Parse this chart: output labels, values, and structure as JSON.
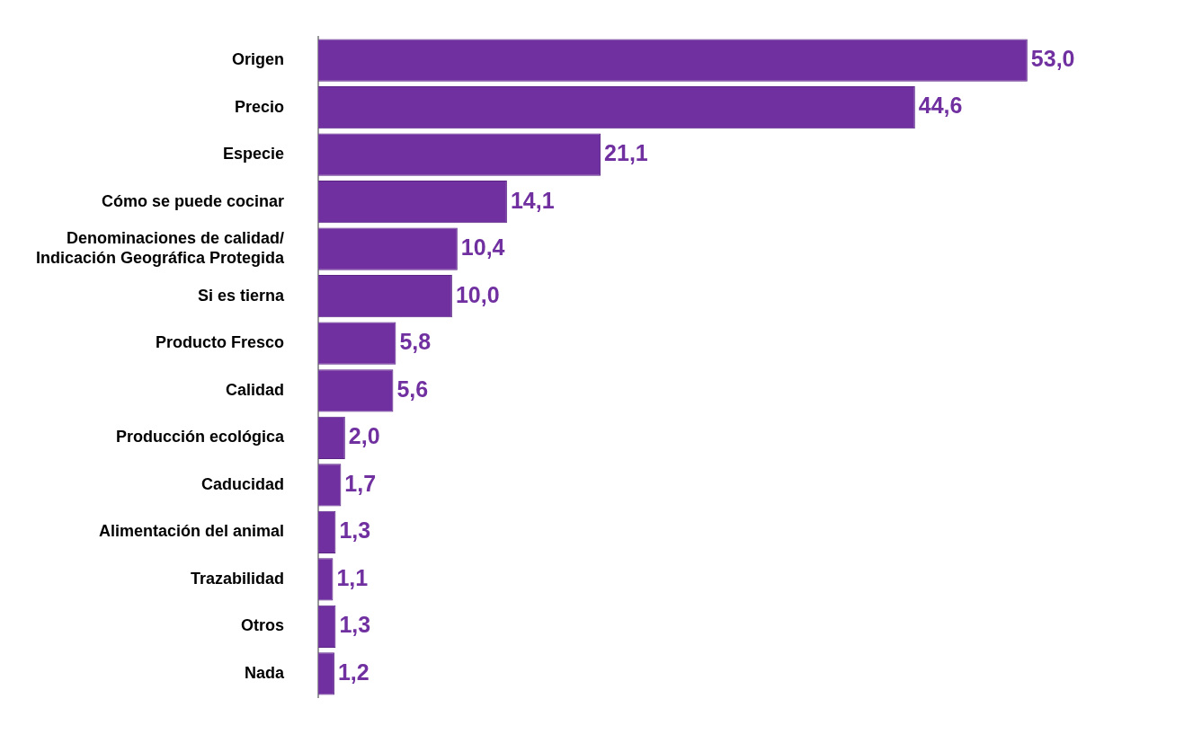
{
  "chart_data": {
    "type": "bar",
    "orientation": "horizontal",
    "categories": [
      "Origen",
      "Precio",
      "Especie",
      "Cómo se puede cocinar",
      "Denominaciones de calidad/\nIndicación Geográfica Protegida",
      "Si es tierna",
      "Producto Fresco",
      "Calidad",
      "Producción ecológica",
      "Caducidad",
      "Alimentación del animal",
      "Trazabilidad",
      "Otros",
      "Nada"
    ],
    "values": [
      53.0,
      44.6,
      21.1,
      14.1,
      10.4,
      10.0,
      5.8,
      5.6,
      2.0,
      1.7,
      1.3,
      1.1,
      1.3,
      1.2
    ],
    "value_labels": [
      "53,0",
      "44,6",
      "21,1",
      "14,1",
      "10,4",
      "10,0",
      "5,8",
      "5,6",
      "2,0",
      "1,7",
      "1,3",
      "1,1",
      "1,3",
      "1,2"
    ],
    "color": "#7030a0",
    "tick_labels": "y"
  }
}
